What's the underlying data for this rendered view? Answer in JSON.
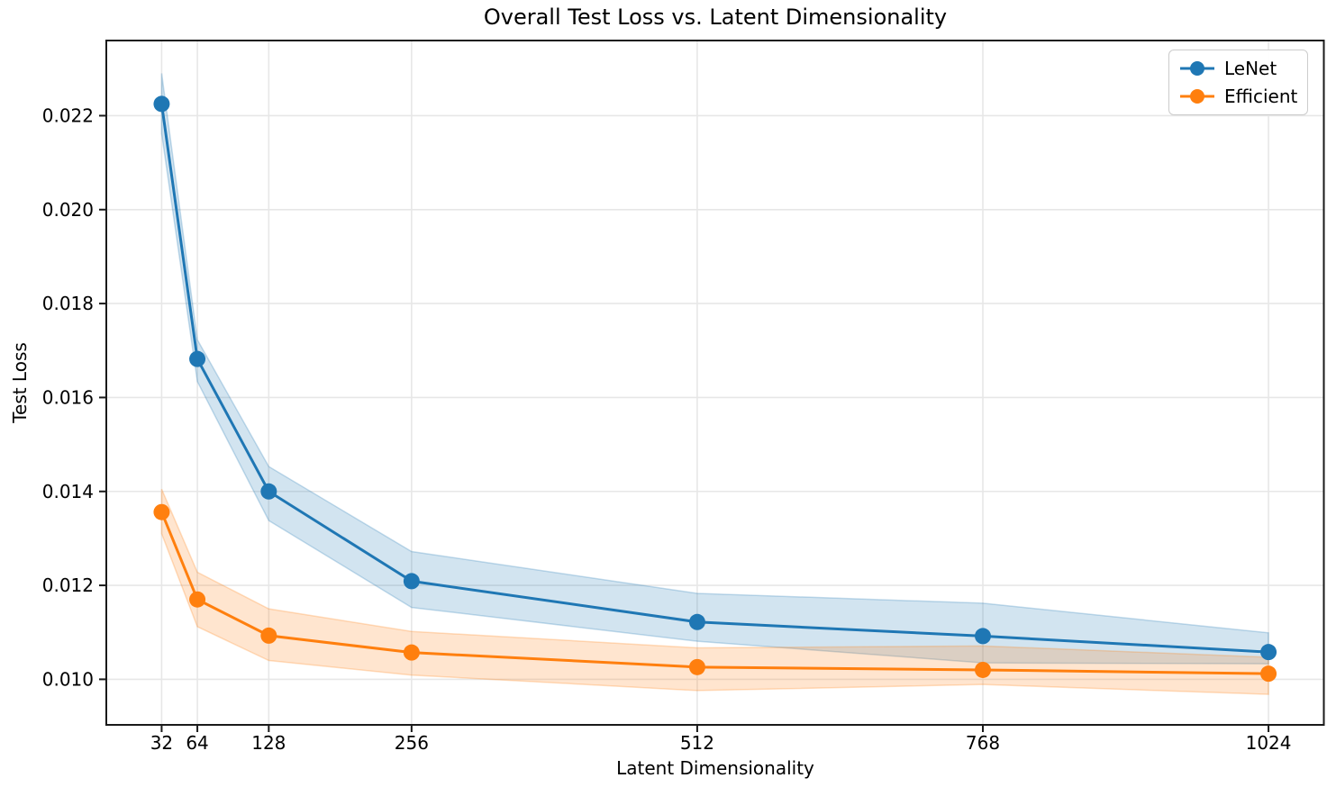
{
  "chart_data": {
    "type": "line",
    "title": "Overall Test Loss vs. Latent Dimensionality",
    "xlabel": "Latent Dimensionality",
    "ylabel": "Test Loss",
    "x": [
      32,
      64,
      128,
      256,
      512,
      768,
      1024
    ],
    "x_tick_labels": [
      "32",
      "64",
      "128",
      "256",
      "512",
      "768",
      "1024"
    ],
    "y_ticks": [
      0.01,
      0.012,
      0.014,
      0.016,
      0.018,
      0.02,
      0.022
    ],
    "y_tick_labels": [
      "0.010",
      "0.012",
      "0.014",
      "0.016",
      "0.018",
      "0.020",
      "0.022"
    ],
    "xlim": [
      -17.6,
      1073.6
    ],
    "ylim": [
      0.00903,
      0.0236
    ],
    "grid": true,
    "legend_position": "upper right",
    "band_opacity": 0.2,
    "colors": {
      "grid": "#e7e7e7",
      "spine": "#1a1a1a",
      "tick": "#1a1a1a",
      "text": "#000000"
    },
    "series": [
      {
        "name": "LeNet",
        "color": "#1f77b4",
        "values": [
          0.02225,
          0.01682,
          0.014,
          0.01209,
          0.01122,
          0.01092,
          0.01058
        ],
        "band_upper": [
          0.0229,
          0.01723,
          0.01453,
          0.01272,
          0.01183,
          0.01162,
          0.01099
        ],
        "band_lower": [
          0.02162,
          0.01634,
          0.01338,
          0.01153,
          0.01081,
          0.01035,
          0.01033
        ]
      },
      {
        "name": "Efficient",
        "color": "#ff7f0e",
        "values": [
          0.01356,
          0.0117,
          0.01093,
          0.01057,
          0.01026,
          0.0102,
          0.01012
        ],
        "band_upper": [
          0.01405,
          0.01228,
          0.0115,
          0.01102,
          0.01067,
          0.01071,
          0.01047
        ],
        "band_lower": [
          0.0131,
          0.01112,
          0.0104,
          0.01009,
          0.00976,
          0.00989,
          0.00968
        ]
      }
    ]
  }
}
